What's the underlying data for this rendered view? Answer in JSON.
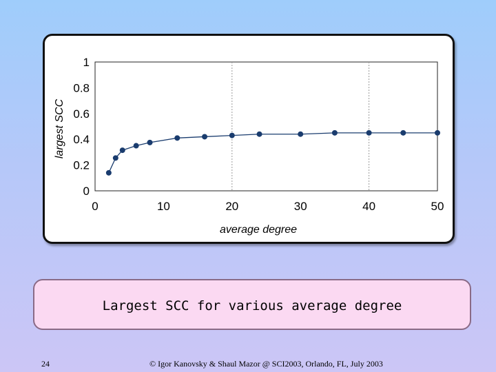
{
  "chart_data": {
    "type": "line",
    "xlabel": "average degree",
    "ylabel": "largest SCC",
    "xlim": [
      0,
      50
    ],
    "ylim": [
      0,
      1
    ],
    "x_ticks": [
      "0",
      "10",
      "20",
      "30",
      "40",
      "50"
    ],
    "y_ticks": [
      "0",
      "0.2",
      "0.4",
      "0.6",
      "0.8",
      "1"
    ],
    "grid": "vertical dotted",
    "series": [
      {
        "color": "#1a3c6e",
        "x": [
          2,
          3,
          4,
          6,
          8,
          12,
          16,
          20,
          24,
          30,
          35,
          40,
          45,
          50
        ],
        "y": [
          0.14,
          0.255,
          0.315,
          0.35,
          0.375,
          0.41,
          0.42,
          0.43,
          0.44,
          0.44,
          0.45,
          0.45,
          0.45,
          0.45
        ]
      }
    ]
  },
  "caption": "Largest SCC for various average degree",
  "footer": {
    "slide_number": "24",
    "credit": "© Igor Kanovsky & Shaul Mazor @ SCI2003, Orlando, FL, July 2003"
  }
}
